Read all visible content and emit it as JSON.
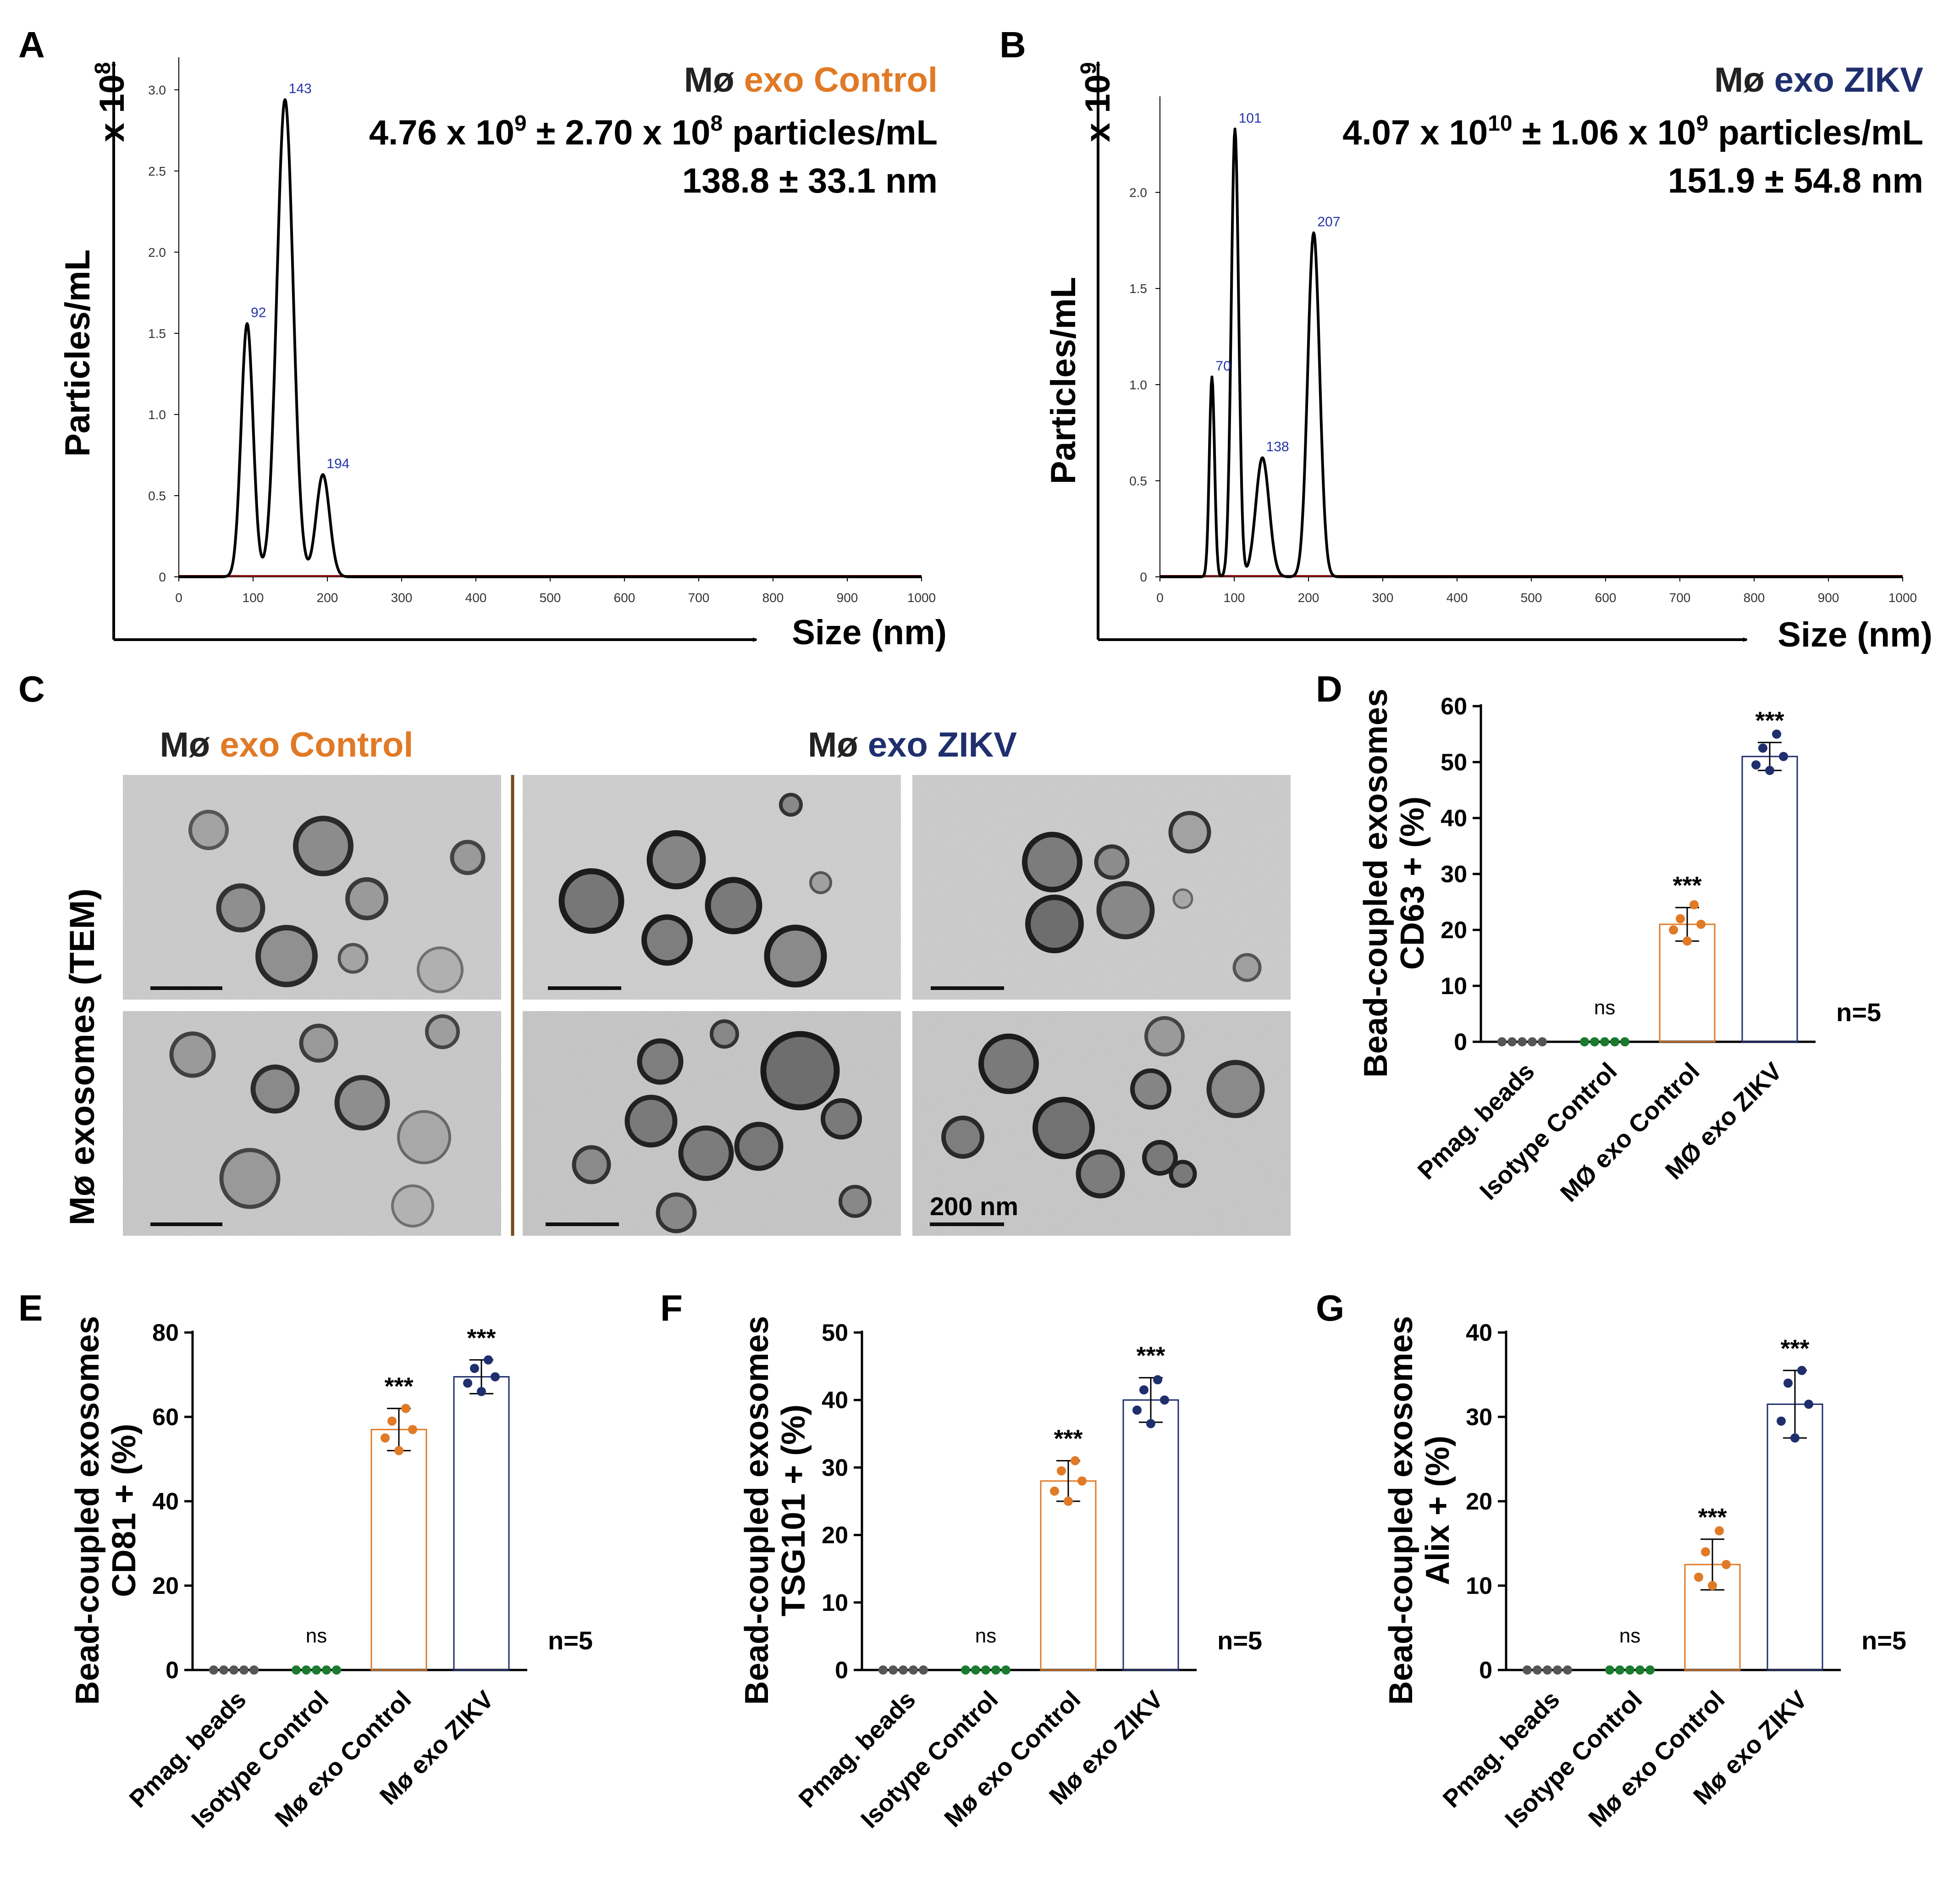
{
  "colors": {
    "control": "#e07a26",
    "zikv": "#1f2f6e",
    "isotype": "#1a7a2e",
    "pmag": "#555555",
    "peak_label": "#2233aa",
    "trace": "#000000",
    "baseline": "#8b1a1a",
    "divider": "#7a4a1a"
  },
  "panel_labels": [
    "A",
    "B",
    "C",
    "D",
    "E",
    "F",
    "G"
  ],
  "chart_data": [
    {
      "panel": "A",
      "type": "line",
      "title_prefix": "Mø",
      "title_main": "exo Control",
      "stats_particles": {
        "m": "4.76 x 10",
        "me": "9",
        "mid": " ± 2.70 x 10",
        "se": "8",
        "tail": " particles/mL"
      },
      "stats_size": "138.8 ± 33.1 nm",
      "ylabel": "Particles/mL",
      "y_scale": {
        "text": "x 10",
        "exp": "8"
      },
      "xlabel": "Size (nm)",
      "xlim": [
        0,
        1000
      ],
      "ylim": [
        0,
        3.2
      ],
      "x_ticks": [
        "0",
        "100",
        "200",
        "300",
        "400",
        "500",
        "600",
        "700",
        "800",
        "900",
        "1000"
      ],
      "y_ticks": [
        "0",
        "0.5",
        "1.0",
        "1.5",
        "2.0",
        "2.5",
        "3.0"
      ],
      "peaks": [
        {
          "x": 92,
          "y": 1.56,
          "w": 8,
          "label": "92"
        },
        {
          "x": 143,
          "y": 2.94,
          "w": 11,
          "label": "143"
        },
        {
          "x": 194,
          "y": 0.63,
          "w": 9,
          "label": "194"
        }
      ]
    },
    {
      "panel": "B",
      "type": "line",
      "title_prefix": "Mø",
      "title_main": "exo ZIKV",
      "stats_particles": {
        "m": "4.07 x 10",
        "me": "10",
        "mid": " ± 1.06 x 10",
        "se": "9",
        "tail": " particles/mL"
      },
      "stats_size": "151.9 ± 54.8 nm",
      "ylabel": "Particles/mL",
      "y_scale": {
        "text": "x 10",
        "exp": "9"
      },
      "xlabel": "Size (nm)",
      "xlim": [
        0,
        1000
      ],
      "ylim": [
        0,
        2.5
      ],
      "x_ticks": [
        "0",
        "100",
        "200",
        "300",
        "400",
        "500",
        "600",
        "700",
        "800",
        "900",
        "1000"
      ],
      "y_ticks": [
        "0",
        "0.5",
        "1.0",
        "1.5",
        "2.0"
      ],
      "peaks": [
        {
          "x": 70,
          "y": 1.04,
          "w": 3.5,
          "label": "70"
        },
        {
          "x": 101,
          "y": 2.33,
          "w": 5,
          "label": "101"
        },
        {
          "x": 138,
          "y": 0.62,
          "w": 9,
          "label": "138"
        },
        {
          "x": 207,
          "y": 1.79,
          "w": 8,
          "label": "207"
        }
      ]
    },
    {
      "panel": "D",
      "type": "bar",
      "ylabel_line1": "Bead-coupled exosomes",
      "ylabel_line2": "CD63 + (%)",
      "ylim": [
        0,
        60
      ],
      "y_ticks": [
        0,
        10,
        20,
        30,
        40,
        50,
        60
      ],
      "categories": [
        "Pmag. beads",
        "Isotype Control",
        "MØ exo Control",
        "MØ exo ZIKV"
      ],
      "values": [
        0,
        0,
        21,
        51
      ],
      "errors": [
        0,
        0,
        3,
        2.5
      ],
      "points": [
        [
          0,
          0,
          0,
          0,
          0
        ],
        [
          0,
          0,
          0,
          0,
          0
        ],
        [
          18,
          20,
          21,
          22,
          24.5
        ],
        [
          48.5,
          49.5,
          51,
          52.5,
          55
        ]
      ],
      "significance": [
        "",
        "ns",
        "***",
        "***"
      ],
      "n_label": "n=5"
    },
    {
      "panel": "E",
      "type": "bar",
      "ylabel_line1": "Bead-coupled exosomes",
      "ylabel_line2": "CD81 + (%)",
      "ylim": [
        0,
        80
      ],
      "y_ticks": [
        0,
        20,
        40,
        60,
        80
      ],
      "categories": [
        "Pmag. beads",
        "Isotype Control",
        "Mø exo Control",
        "Mø exo ZIKV"
      ],
      "values": [
        0,
        0,
        57,
        69.5
      ],
      "errors": [
        0,
        0,
        5,
        4
      ],
      "points": [
        [
          0,
          0,
          0,
          0,
          0
        ],
        [
          0,
          0,
          0,
          0,
          0
        ],
        [
          52,
          55,
          57,
          59,
          62
        ],
        [
          66,
          68,
          69.5,
          71.5,
          73.5
        ]
      ],
      "significance": [
        "",
        "ns",
        "***",
        "***"
      ],
      "n_label": "n=5"
    },
    {
      "panel": "F",
      "type": "bar",
      "ylabel_line1": "Bead-coupled exosomes",
      "ylabel_line2": "TSG101 + (%)",
      "ylim": [
        0,
        50
      ],
      "y_ticks": [
        0,
        10,
        20,
        30,
        40,
        50
      ],
      "categories": [
        "Pmag. beads",
        "Isotype Control",
        "Mø exo Control",
        "Mø exo ZIKV"
      ],
      "values": [
        0,
        0,
        28,
        40
      ],
      "errors": [
        0,
        0,
        3,
        3.3
      ],
      "points": [
        [
          0,
          0,
          0,
          0,
          0
        ],
        [
          0,
          0,
          0,
          0,
          0
        ],
        [
          25,
          26.5,
          28,
          29.5,
          31
        ],
        [
          36.5,
          38.5,
          40,
          41.5,
          43
        ]
      ],
      "significance": [
        "",
        "ns",
        "***",
        "***"
      ],
      "n_label": "n=5"
    },
    {
      "panel": "G",
      "type": "bar",
      "ylabel_line1": "Bead-coupled exosomes",
      "ylabel_line2": "Alix + (%)",
      "ylim": [
        0,
        40
      ],
      "y_ticks": [
        0,
        10,
        20,
        30,
        40
      ],
      "categories": [
        "Pmag. beads",
        "Isotype Control",
        "Mø exo Control",
        "Mø exo ZIKV"
      ],
      "values": [
        0,
        0,
        12.5,
        31.5
      ],
      "errors": [
        0,
        0,
        3,
        4
      ],
      "points": [
        [
          0,
          0,
          0,
          0,
          0
        ],
        [
          0,
          0,
          0,
          0,
          0
        ],
        [
          10,
          11,
          12.5,
          14,
          16.5
        ],
        [
          27.5,
          29.5,
          31.5,
          34,
          35.5
        ]
      ],
      "significance": [
        "",
        "ns",
        "***",
        "***"
      ],
      "n_label": "n=5"
    }
  ],
  "tem": {
    "ylabel": "Mø exosomes (TEM)",
    "title_control_prefix": "Mø",
    "title_control_main": "exo Control",
    "title_zikv_prefix": "Mø",
    "title_zikv_main": "exo ZIKV",
    "scale_label": "200 nm"
  }
}
